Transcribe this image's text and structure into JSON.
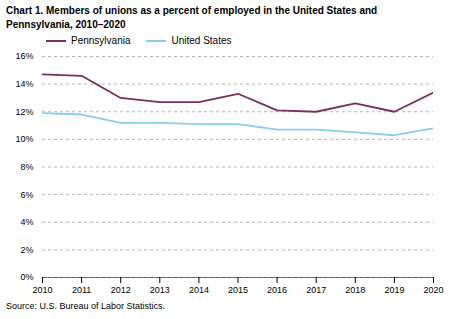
{
  "chart_data": {
    "type": "line",
    "title": "Chart 1. Members of unions as a percent of employed in the United States and\nPennsylvania, 2010–2020",
    "caption": "Source: U.S. Bureau of Labor Statistics.",
    "x": [
      2010,
      2011,
      2012,
      2013,
      2014,
      2015,
      2016,
      2017,
      2018,
      2019,
      2020
    ],
    "series": [
      {
        "name": "Pennsylvania",
        "color": "#7B2D5E",
        "values": [
          14.7,
          14.6,
          13.0,
          12.7,
          12.7,
          13.3,
          12.1,
          12.0,
          12.6,
          12.0,
          13.4
        ]
      },
      {
        "name": "United States",
        "color": "#87CEEB",
        "values": [
          11.9,
          11.8,
          11.2,
          11.2,
          11.1,
          11.1,
          10.7,
          10.7,
          10.5,
          10.3,
          10.8
        ]
      }
    ],
    "xlim": [
      2010,
      2020
    ],
    "xticks": [
      2010,
      2011,
      2012,
      2013,
      2014,
      2015,
      2016,
      2017,
      2018,
      2019,
      2020
    ],
    "ylim": [
      0,
      16
    ],
    "yticks": [
      {
        "value": 0,
        "label": "0%"
      },
      {
        "value": 2,
        "label": "2%"
      },
      {
        "value": 4,
        "label": "4%"
      },
      {
        "value": 6,
        "label": "6%"
      },
      {
        "value": 8,
        "label": "8%"
      },
      {
        "value": 10,
        "label": "10%"
      },
      {
        "value": 12,
        "label": "12%"
      },
      {
        "value": 14,
        "label": "14%"
      },
      {
        "value": 16,
        "label": "16%"
      }
    ],
    "grid": true,
    "legend": "top"
  }
}
